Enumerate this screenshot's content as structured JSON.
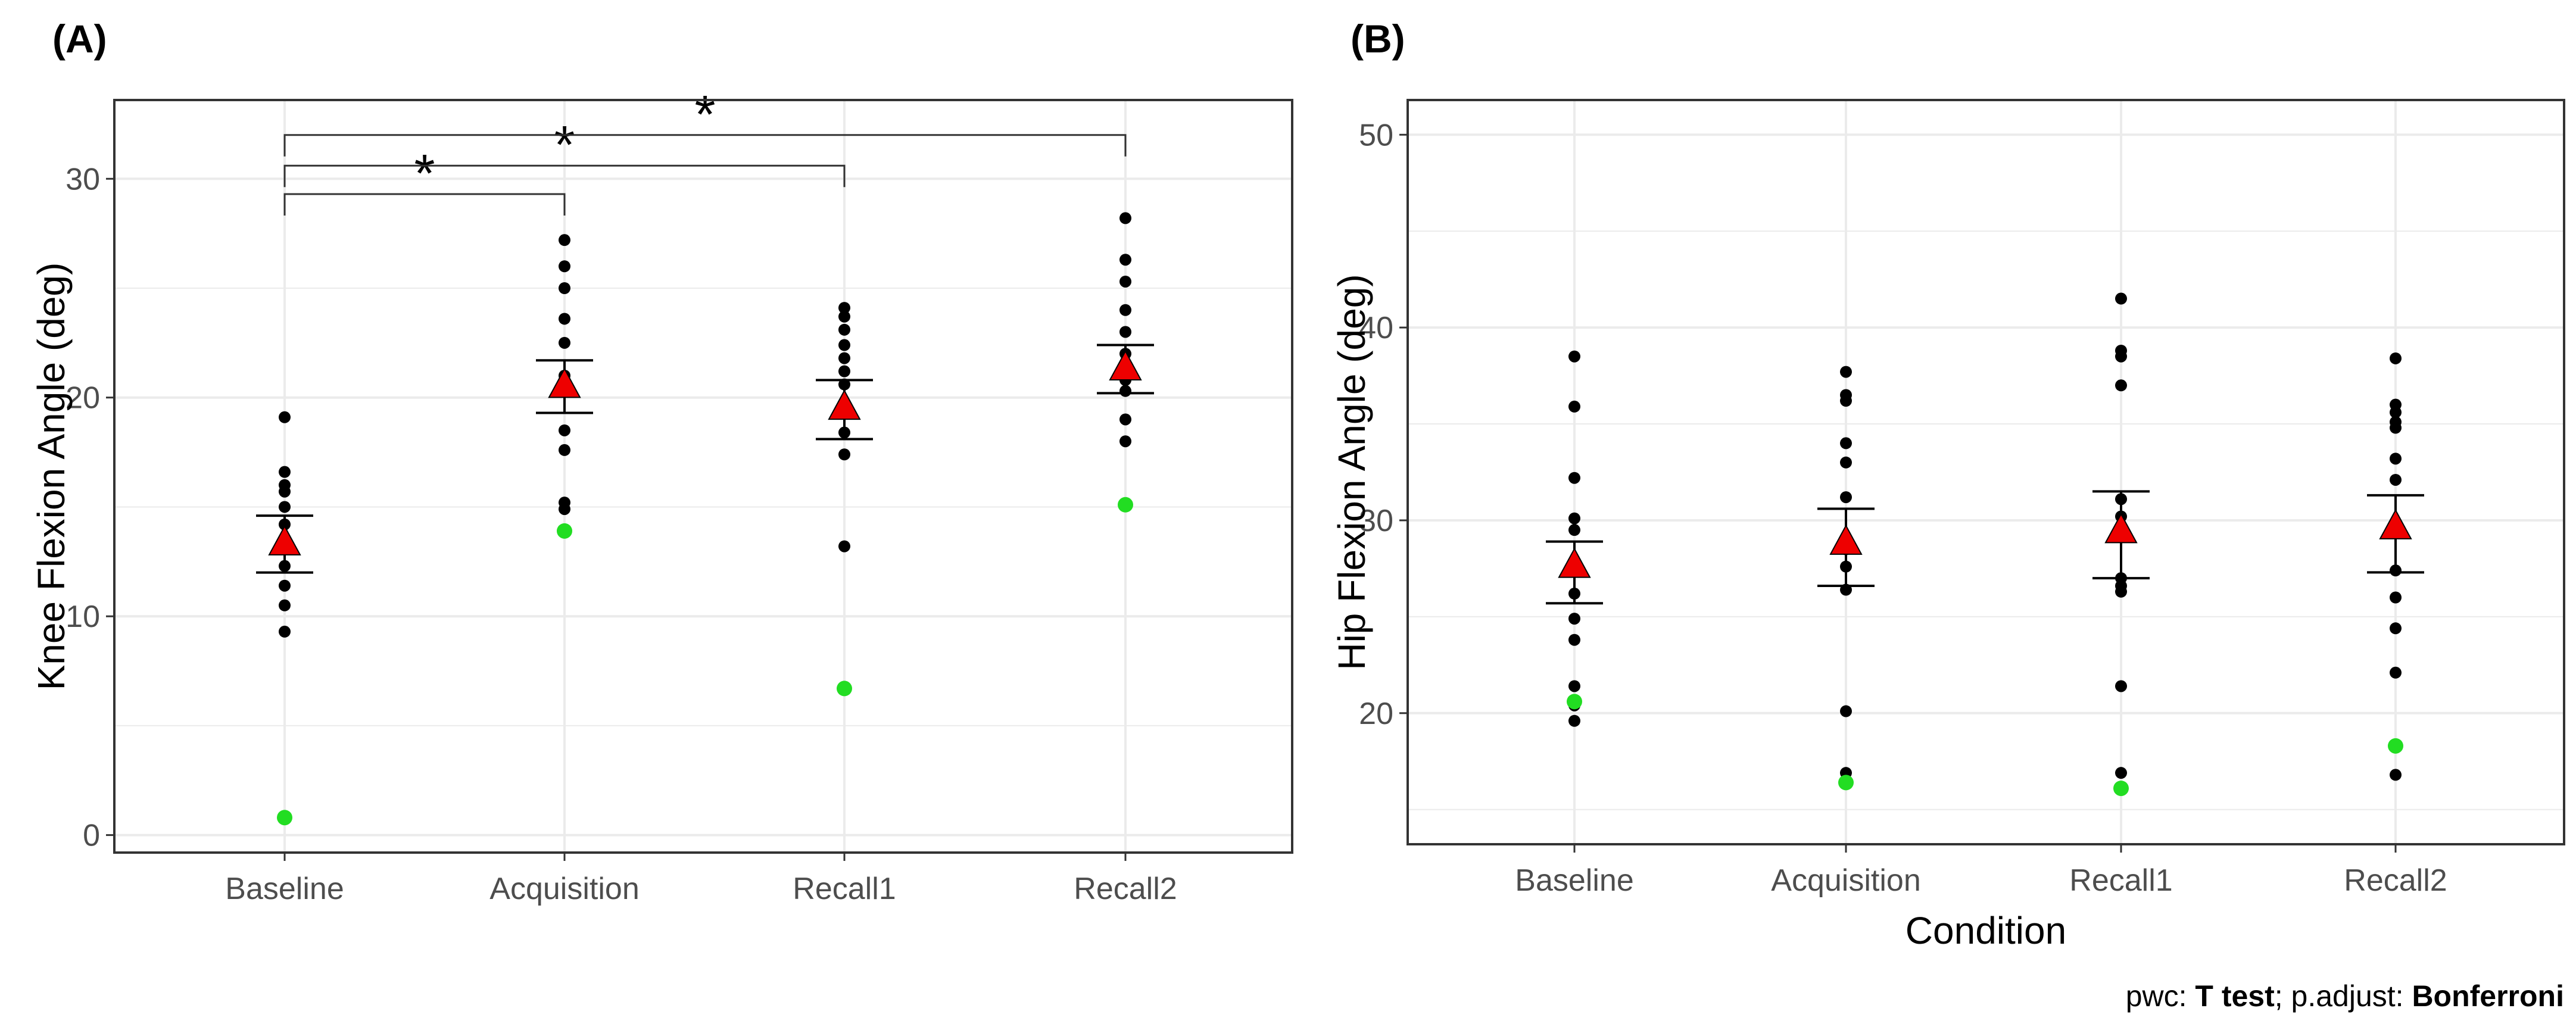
{
  "caption": {
    "pwc_label": "pwc: ",
    "pwc_value": "T test",
    "sep": "; p.adjust: ",
    "adjust_value": "Bonferroni"
  },
  "colors": {
    "point": "#000000",
    "outlier": "#22dd22",
    "mean_marker": "#ee0000",
    "grid": "#ebebeb",
    "border": "#333333"
  },
  "chart_data": [
    {
      "panel": "(A)",
      "type": "scatter",
      "title": "",
      "xlabel": "",
      "ylabel": "Knee Flexion Angle (deg)",
      "categories": [
        "Baseline",
        "Acquisition",
        "Recall1",
        "Recall2"
      ],
      "ylim": [
        -0.8,
        33.6
      ],
      "yticks": [
        0,
        10,
        20,
        30
      ],
      "grid": true,
      "points": [
        [
          19.1,
          16.6,
          16.0,
          15.7,
          15.0,
          14.2,
          13.2,
          12.3,
          11.4,
          10.5,
          9.3
        ],
        [
          27.2,
          26.0,
          25.0,
          23.6,
          22.5,
          21.0,
          20.3,
          18.5,
          17.6,
          15.2,
          14.9
        ],
        [
          24.1,
          23.7,
          23.1,
          22.4,
          21.8,
          21.2,
          20.6,
          19.5,
          18.4,
          17.4,
          13.2
        ],
        [
          28.2,
          26.3,
          25.3,
          24.0,
          23.0,
          22.0,
          21.5,
          20.8,
          20.3,
          19.0,
          18.0
        ]
      ],
      "outliers": [
        0.8,
        13.9,
        6.7,
        15.1
      ],
      "means": [
        13.3,
        20.5,
        19.5,
        21.3
      ],
      "ci": [
        [
          12.0,
          14.6
        ],
        [
          19.3,
          21.7
        ],
        [
          18.1,
          20.8
        ],
        [
          20.2,
          22.4
        ]
      ],
      "brackets": [
        {
          "from": 0,
          "to": 1,
          "y": 29.3,
          "label": "*"
        },
        {
          "from": 0,
          "to": 2,
          "y": 30.6,
          "label": "*"
        },
        {
          "from": 0,
          "to": 3,
          "y": 32.0,
          "label": "*"
        }
      ]
    },
    {
      "panel": "(B)",
      "type": "scatter",
      "title": "",
      "xlabel": "Condition",
      "ylabel": "Hip Flexion Angle (deg)",
      "categories": [
        "Baseline",
        "Acquisition",
        "Recall1",
        "Recall2"
      ],
      "ylim": [
        13.2,
        51.8
      ],
      "yticks": [
        20,
        30,
        40,
        50
      ],
      "grid": true,
      "points": [
        [
          38.5,
          35.9,
          32.2,
          30.1,
          29.5,
          26.2,
          24.9,
          23.8,
          21.4,
          20.4,
          19.6
        ],
        [
          37.7,
          36.5,
          36.2,
          34.0,
          33.0,
          31.2,
          28.5,
          27.6,
          26.4,
          20.1,
          16.9
        ],
        [
          41.5,
          38.8,
          38.5,
          37.0,
          31.1,
          30.2,
          27.0,
          26.6,
          26.3,
          21.4,
          16.9
        ],
        [
          38.4,
          36.0,
          35.6,
          35.1,
          34.8,
          33.2,
          32.1,
          27.4,
          26.0,
          24.4,
          22.1,
          16.8
        ]
      ],
      "outliers": [
        20.6,
        16.4,
        16.1,
        18.3
      ],
      "means": [
        27.6,
        28.8,
        29.4,
        29.6
      ],
      "ci": [
        [
          25.7,
          28.9
        ],
        [
          26.6,
          30.6
        ],
        [
          27.0,
          31.5
        ],
        [
          27.3,
          31.3
        ]
      ],
      "brackets": []
    }
  ]
}
